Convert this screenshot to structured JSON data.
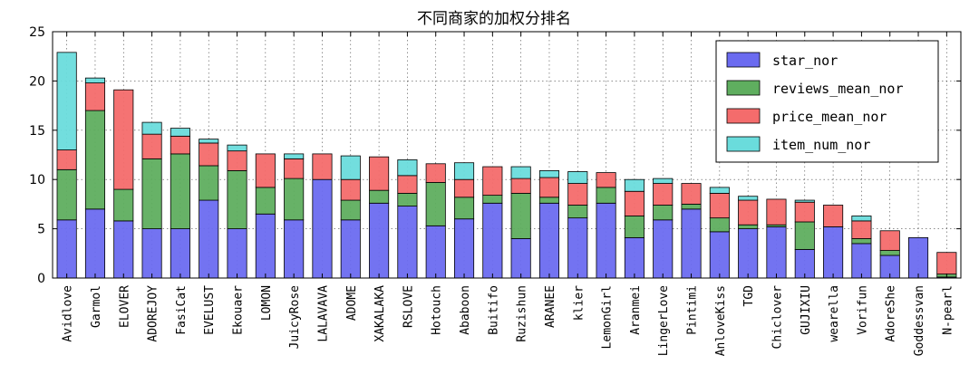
{
  "chart_data": {
    "type": "bar",
    "stacked": true,
    "title": "不同商家的加权分排名",
    "xlabel": "",
    "ylabel": "",
    "ylim": [
      0,
      25
    ],
    "yticks": [
      0,
      5,
      10,
      15,
      20,
      25
    ],
    "grid": true,
    "legend_position": "top-right",
    "categories": [
      "Avidlove",
      "Garmol",
      "ELOVER",
      "ADOREJOY",
      "FasiCat",
      "EVELUST",
      "Ekouaer",
      "LOMON",
      "JuicyRose",
      "LALAVAVA",
      "ADOME",
      "XAKALAKA",
      "RSLOVE",
      "Hotouch",
      "Ababoon",
      "Buitifo",
      "Ruzishun",
      "ARANEE",
      "klier",
      "LemonGirl",
      "Aranmei",
      "LingerLove",
      "Pintimi",
      "AnloveKiss",
      "TGD",
      "Chiclover",
      "GUJIXIU",
      "wearella",
      "Vorifun",
      "AdoreShe",
      "Goddessvan",
      "N-pearl"
    ],
    "series": [
      {
        "name": "star_nor",
        "color": "#6b6bf0",
        "values": [
          5.9,
          7.0,
          5.8,
          5.0,
          5.0,
          7.9,
          5.0,
          6.5,
          5.9,
          10.0,
          5.9,
          7.6,
          7.3,
          5.3,
          6.0,
          7.6,
          4.0,
          7.6,
          6.1,
          7.6,
          4.1,
          5.9,
          7.0,
          4.7,
          5.0,
          5.2,
          2.9,
          5.2,
          3.5,
          2.3,
          4.1,
          0.1
        ]
      },
      {
        "name": "reviews_mean_nor",
        "color": "#5fae5f",
        "values": [
          5.1,
          10.0,
          3.2,
          7.1,
          7.6,
          3.5,
          5.9,
          2.7,
          4.2,
          0.0,
          2.0,
          1.3,
          1.3,
          4.4,
          2.2,
          0.8,
          4.6,
          0.6,
          1.3,
          1.6,
          2.2,
          1.5,
          0.5,
          1.4,
          0.4,
          0.2,
          2.8,
          0.0,
          0.5,
          0.5,
          0.0,
          0.3
        ]
      },
      {
        "name": "price_mean_nor",
        "color": "#f46c6c",
        "values": [
          2.0,
          2.8,
          10.1,
          2.5,
          1.8,
          2.3,
          2.0,
          3.4,
          2.0,
          2.6,
          2.1,
          3.4,
          1.8,
          1.9,
          1.8,
          2.9,
          1.5,
          2.0,
          2.2,
          1.5,
          2.5,
          2.2,
          2.1,
          2.5,
          2.5,
          2.6,
          2.0,
          2.2,
          1.8,
          2.0,
          0.0,
          2.2
        ]
      },
      {
        "name": "item_num_nor",
        "color": "#6adcdc",
        "values": [
          9.9,
          0.5,
          0.0,
          1.2,
          0.8,
          0.4,
          0.6,
          0.0,
          0.5,
          0.0,
          2.4,
          0.0,
          1.6,
          0.0,
          1.7,
          0.0,
          1.2,
          0.7,
          1.2,
          0.0,
          1.2,
          0.5,
          0.0,
          0.6,
          0.4,
          0.0,
          0.2,
          0.0,
          0.5,
          0.0,
          0.0,
          0.0
        ]
      }
    ]
  }
}
